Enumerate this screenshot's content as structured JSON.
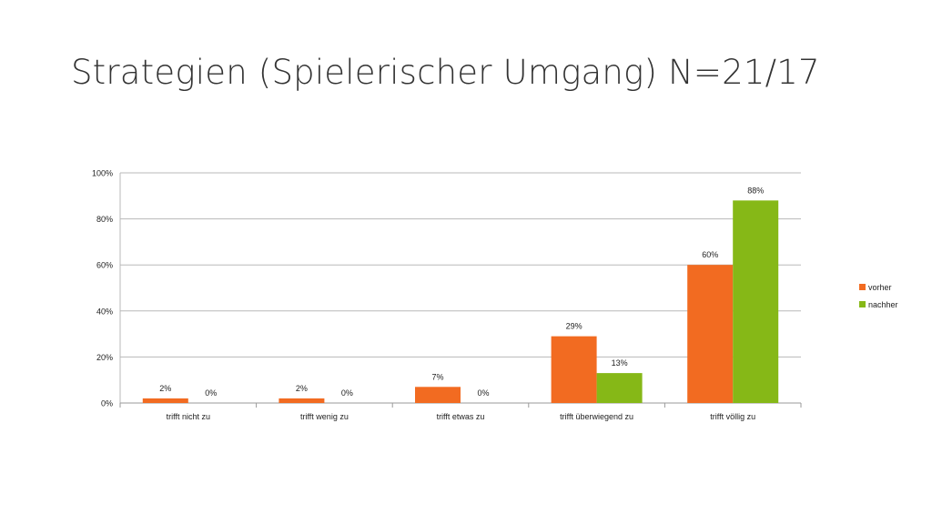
{
  "title": "Strategien (Spielerischer Umgang) N=21/17",
  "chart_data": {
    "type": "bar",
    "categories": [
      "trifft nicht zu",
      "trifft wenig zu",
      "trifft etwas zu",
      "trifft überwiegend zu",
      "trifft völlig zu"
    ],
    "series": [
      {
        "name": "vorher",
        "values": [
          2,
          2,
          7,
          29,
          60
        ],
        "labels": [
          "2%",
          "2%",
          "7%",
          "29%",
          "60%"
        ],
        "color": "#F26B21"
      },
      {
        "name": "nachher",
        "values": [
          0,
          0,
          0,
          13,
          88
        ],
        "labels": [
          "0%",
          "0%",
          "0%",
          "13%",
          "88%"
        ],
        "color": "#86B817"
      }
    ],
    "ylim": [
      0,
      100
    ],
    "yticks": [
      0,
      20,
      40,
      60,
      80,
      100
    ],
    "ytick_labels": [
      "0%",
      "20%",
      "40%",
      "60%",
      "80%",
      "100%"
    ],
    "grid": true,
    "legend": "right",
    "xlabel": "",
    "ylabel": ""
  }
}
